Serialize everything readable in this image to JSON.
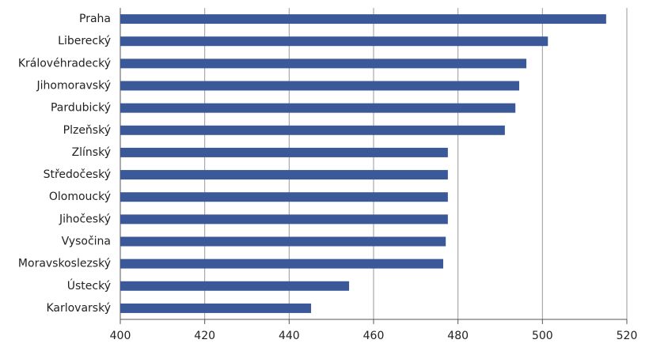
{
  "chart_data": {
    "type": "barh",
    "categories": [
      "Praha",
      "Liberecký",
      "Královéhradecký",
      "Jihomoravský",
      "Pardubický",
      "Plzeňský",
      "Zlínský",
      "Středočeský",
      "Olomoucký",
      "Jihočeský",
      "Vysočina",
      "Moravskoslezský",
      "Ústecký",
      "Karlovarský"
    ],
    "values": [
      515.1,
      501.3,
      496.2,
      494.5,
      493.6,
      491.1,
      477.6,
      477.6,
      477.6,
      477.6,
      477.1,
      476.5,
      454.2,
      445.2
    ],
    "color": "#3b5998",
    "xlim": [
      400,
      520
    ],
    "xticks": [
      400,
      420,
      440,
      460,
      480,
      500,
      520
    ],
    "grid": true
  }
}
